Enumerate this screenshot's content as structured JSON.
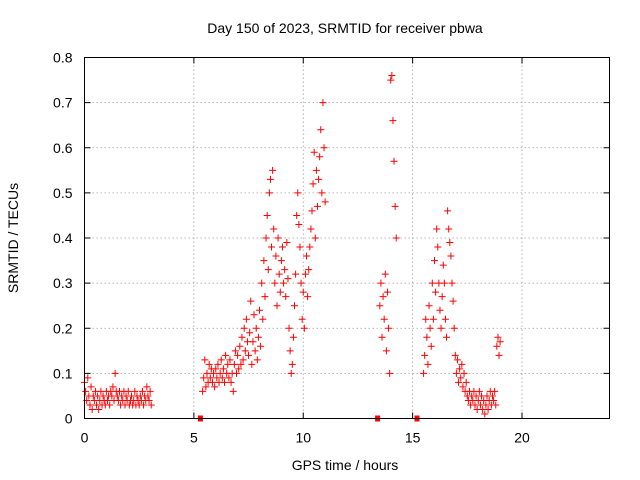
{
  "chart_data": {
    "type": "scatter",
    "title": "Day 150 of 2023, SRMTID for receiver pbwa",
    "xlabel": "GPS time / hours",
    "ylabel": "SRMTID / TECUs",
    "xlim": [
      0,
      24
    ],
    "ylim": [
      0,
      0.8
    ],
    "xticks": [
      0,
      5,
      10,
      15,
      20
    ],
    "xtick_labels": [
      "0",
      "5",
      "10",
      "15",
      "20"
    ],
    "yticks": [
      0,
      0.1,
      0.2,
      0.3,
      0.4,
      0.5,
      0.6,
      0.7,
      0.8
    ],
    "ytick_labels": [
      "0",
      "0.1",
      "0.2",
      "0.3",
      "0.4",
      "0.5",
      "0.6",
      "0.7",
      "0.8"
    ],
    "grid": true,
    "marker": "plus",
    "color": "#ff0000",
    "series": [
      {
        "name": "SRMTID",
        "points": [
          [
            0.0,
            0.08
          ],
          [
            0.05,
            0.06
          ],
          [
            0.1,
            0.04
          ],
          [
            0.15,
            0.09
          ],
          [
            0.2,
            0.05
          ],
          [
            0.25,
            0.03
          ],
          [
            0.3,
            0.07
          ],
          [
            0.35,
            0.02
          ],
          [
            0.4,
            0.05
          ],
          [
            0.45,
            0.04
          ],
          [
            0.5,
            0.06
          ],
          [
            0.55,
            0.03
          ],
          [
            0.6,
            0.05
          ],
          [
            0.65,
            0.02
          ],
          [
            0.7,
            0.04
          ],
          [
            0.75,
            0.06
          ],
          [
            0.8,
            0.03
          ],
          [
            0.85,
            0.05
          ],
          [
            0.9,
            0.04
          ],
          [
            0.95,
            0.03
          ],
          [
            1.0,
            0.06
          ],
          [
            1.05,
            0.04
          ],
          [
            1.1,
            0.05
          ],
          [
            1.15,
            0.03
          ],
          [
            1.2,
            0.06
          ],
          [
            1.25,
            0.05
          ],
          [
            1.3,
            0.07
          ],
          [
            1.35,
            0.04
          ],
          [
            1.4,
            0.1
          ],
          [
            1.45,
            0.06
          ],
          [
            1.5,
            0.05
          ],
          [
            1.55,
            0.04
          ],
          [
            1.6,
            0.06
          ],
          [
            1.65,
            0.03
          ],
          [
            1.7,
            0.05
          ],
          [
            1.75,
            0.04
          ],
          [
            1.8,
            0.06
          ],
          [
            1.85,
            0.03
          ],
          [
            1.9,
            0.05
          ],
          [
            1.95,
            0.04
          ],
          [
            2.0,
            0.06
          ],
          [
            2.05,
            0.03
          ],
          [
            2.1,
            0.04
          ],
          [
            2.15,
            0.05
          ],
          [
            2.2,
            0.03
          ],
          [
            2.25,
            0.04
          ],
          [
            2.3,
            0.06
          ],
          [
            2.35,
            0.03
          ],
          [
            2.4,
            0.05
          ],
          [
            2.45,
            0.04
          ],
          [
            2.5,
            0.03
          ],
          [
            2.55,
            0.05
          ],
          [
            2.6,
            0.04
          ],
          [
            2.65,
            0.06
          ],
          [
            2.7,
            0.03
          ],
          [
            2.75,
            0.05
          ],
          [
            2.8,
            0.04
          ],
          [
            2.85,
            0.07
          ],
          [
            2.9,
            0.05
          ],
          [
            2.95,
            0.04
          ],
          [
            3.0,
            0.06
          ],
          [
            3.05,
            0.03
          ],
          [
            5.4,
            0.06
          ],
          [
            5.45,
            0.09
          ],
          [
            5.5,
            0.13
          ],
          [
            5.55,
            0.07
          ],
          [
            5.6,
            0.1
          ],
          [
            5.65,
            0.08
          ],
          [
            5.7,
            0.12
          ],
          [
            5.75,
            0.09
          ],
          [
            5.8,
            0.11
          ],
          [
            5.85,
            0.08
          ],
          [
            5.9,
            0.1
          ],
          [
            5.95,
            0.07
          ],
          [
            6.0,
            0.11
          ],
          [
            6.05,
            0.09
          ],
          [
            6.1,
            0.12
          ],
          [
            6.15,
            0.08
          ],
          [
            6.2,
            0.1
          ],
          [
            6.25,
            0.13
          ],
          [
            6.3,
            0.09
          ],
          [
            6.35,
            0.11
          ],
          [
            6.4,
            0.08
          ],
          [
            6.45,
            0.14
          ],
          [
            6.5,
            0.1
          ],
          [
            6.55,
            0.12
          ],
          [
            6.6,
            0.09
          ],
          [
            6.65,
            0.13
          ],
          [
            6.7,
            0.08
          ],
          [
            6.75,
            0.1
          ],
          [
            6.8,
            0.06
          ],
          [
            6.85,
            0.12
          ],
          [
            6.9,
            0.15
          ],
          [
            6.95,
            0.1
          ],
          [
            7.0,
            0.14
          ],
          [
            7.05,
            0.11
          ],
          [
            7.1,
            0.16
          ],
          [
            7.15,
            0.12
          ],
          [
            7.2,
            0.18
          ],
          [
            7.25,
            0.13
          ],
          [
            7.3,
            0.2
          ],
          [
            7.35,
            0.15
          ],
          [
            7.4,
            0.22
          ],
          [
            7.45,
            0.17
          ],
          [
            7.5,
            0.14
          ],
          [
            7.55,
            0.19
          ],
          [
            7.6,
            0.26
          ],
          [
            7.65,
            0.12
          ],
          [
            7.7,
            0.17
          ],
          [
            7.75,
            0.23
          ],
          [
            7.8,
            0.15
          ],
          [
            7.85,
            0.2
          ],
          [
            7.9,
            0.13
          ],
          [
            7.95,
            0.18
          ],
          [
            8.0,
            0.24
          ],
          [
            8.05,
            0.16
          ],
          [
            8.1,
            0.3
          ],
          [
            8.15,
            0.22
          ],
          [
            8.2,
            0.35
          ],
          [
            8.25,
            0.27
          ],
          [
            8.3,
            0.4
          ],
          [
            8.35,
            0.45
          ],
          [
            8.4,
            0.33
          ],
          [
            8.45,
            0.5
          ],
          [
            8.5,
            0.53
          ],
          [
            8.55,
            0.38
          ],
          [
            8.6,
            0.55
          ],
          [
            8.65,
            0.42
          ],
          [
            8.7,
            0.3
          ],
          [
            8.75,
            0.36
          ],
          [
            8.8,
            0.25
          ],
          [
            8.85,
            0.4
          ],
          [
            8.9,
            0.32
          ],
          [
            8.95,
            0.28
          ],
          [
            9.0,
            0.35
          ],
          [
            9.05,
            0.38
          ],
          [
            9.1,
            0.3
          ],
          [
            9.15,
            0.33
          ],
          [
            9.2,
            0.27
          ],
          [
            9.25,
            0.39
          ],
          [
            9.3,
            0.31
          ],
          [
            9.35,
            0.2
          ],
          [
            9.4,
            0.15
          ],
          [
            9.45,
            0.1
          ],
          [
            9.5,
            0.12
          ],
          [
            9.55,
            0.18
          ],
          [
            9.6,
            0.25
          ],
          [
            9.65,
            0.32
          ],
          [
            9.7,
            0.45
          ],
          [
            9.75,
            0.5
          ],
          [
            9.8,
            0.43
          ],
          [
            9.85,
            0.38
          ],
          [
            9.9,
            0.3
          ],
          [
            9.95,
            0.22
          ],
          [
            10.0,
            0.28
          ],
          [
            10.05,
            0.2
          ],
          [
            10.1,
            0.32
          ],
          [
            10.15,
            0.36
          ],
          [
            10.2,
            0.27
          ],
          [
            10.25,
            0.33
          ],
          [
            10.3,
            0.38
          ],
          [
            10.35,
            0.42
          ],
          [
            10.4,
            0.46
          ],
          [
            10.45,
            0.52
          ],
          [
            10.5,
            0.59
          ],
          [
            10.55,
            0.4
          ],
          [
            10.6,
            0.55
          ],
          [
            10.65,
            0.47
          ],
          [
            10.7,
            0.53
          ],
          [
            10.75,
            0.58
          ],
          [
            10.8,
            0.64
          ],
          [
            10.85,
            0.5
          ],
          [
            10.9,
            0.7
          ],
          [
            10.95,
            0.6
          ],
          [
            11.0,
            0.48
          ],
          [
            13.5,
            0.25
          ],
          [
            13.55,
            0.3
          ],
          [
            13.6,
            0.18
          ],
          [
            13.65,
            0.27
          ],
          [
            13.7,
            0.22
          ],
          [
            13.75,
            0.32
          ],
          [
            13.8,
            0.15
          ],
          [
            13.85,
            0.28
          ],
          [
            13.9,
            0.2
          ],
          [
            13.95,
            0.1
          ],
          [
            14.0,
            0.75
          ],
          [
            14.05,
            0.76
          ],
          [
            14.1,
            0.66
          ],
          [
            14.15,
            0.57
          ],
          [
            14.2,
            0.47
          ],
          [
            14.25,
            0.4
          ],
          [
            15.5,
            0.1
          ],
          [
            15.55,
            0.14
          ],
          [
            15.6,
            0.22
          ],
          [
            15.65,
            0.18
          ],
          [
            15.7,
            0.12
          ],
          [
            15.75,
            0.25
          ],
          [
            15.8,
            0.2
          ],
          [
            15.85,
            0.16
          ],
          [
            15.9,
            0.3
          ],
          [
            15.95,
            0.22
          ],
          [
            16.0,
            0.35
          ],
          [
            16.05,
            0.28
          ],
          [
            16.1,
            0.42
          ],
          [
            16.15,
            0.38
          ],
          [
            16.2,
            0.3
          ],
          [
            16.25,
            0.24
          ],
          [
            16.3,
            0.2
          ],
          [
            16.35,
            0.27
          ],
          [
            16.4,
            0.34
          ],
          [
            16.45,
            0.3
          ],
          [
            16.5,
            0.22
          ],
          [
            16.55,
            0.18
          ],
          [
            16.6,
            0.46
          ],
          [
            16.65,
            0.42
          ],
          [
            16.7,
            0.39
          ],
          [
            16.75,
            0.36
          ],
          [
            16.8,
            0.3
          ],
          [
            16.85,
            0.26
          ],
          [
            16.9,
            0.2
          ],
          [
            16.95,
            0.14
          ],
          [
            17.0,
            0.1
          ],
          [
            17.05,
            0.13
          ],
          [
            17.1,
            0.08
          ],
          [
            17.15,
            0.11
          ],
          [
            17.2,
            0.09
          ],
          [
            17.25,
            0.12
          ],
          [
            17.3,
            0.07
          ],
          [
            17.35,
            0.1
          ],
          [
            17.4,
            0.06
          ],
          [
            17.45,
            0.08
          ],
          [
            17.5,
            0.05
          ],
          [
            17.55,
            0.04
          ],
          [
            17.6,
            0.06
          ],
          [
            17.65,
            0.03
          ],
          [
            17.7,
            0.05
          ],
          [
            17.75,
            0.04
          ],
          [
            17.8,
            0.06
          ],
          [
            17.85,
            0.03
          ],
          [
            17.9,
            0.05
          ],
          [
            17.95,
            0.02
          ],
          [
            18.0,
            0.04
          ],
          [
            18.05,
            0.06
          ],
          [
            18.1,
            0.03
          ],
          [
            18.15,
            0.05
          ],
          [
            18.2,
            0.02
          ],
          [
            18.25,
            0.04
          ],
          [
            18.3,
            0.01
          ],
          [
            18.35,
            0.03
          ],
          [
            18.4,
            0.05
          ],
          [
            18.45,
            0.02
          ],
          [
            18.5,
            0.04
          ],
          [
            18.55,
            0.06
          ],
          [
            18.6,
            0.03
          ],
          [
            18.65,
            0.05
          ],
          [
            18.7,
            0.04
          ],
          [
            18.75,
            0.06
          ],
          [
            18.8,
            0.03
          ],
          [
            18.85,
            0.16
          ],
          [
            18.9,
            0.18
          ],
          [
            18.95,
            0.14
          ],
          [
            19.0,
            0.17
          ]
        ]
      }
    ],
    "squares": [
      [
        5.3,
        0
      ],
      [
        13.4,
        0
      ],
      [
        15.2,
        0
      ]
    ]
  }
}
